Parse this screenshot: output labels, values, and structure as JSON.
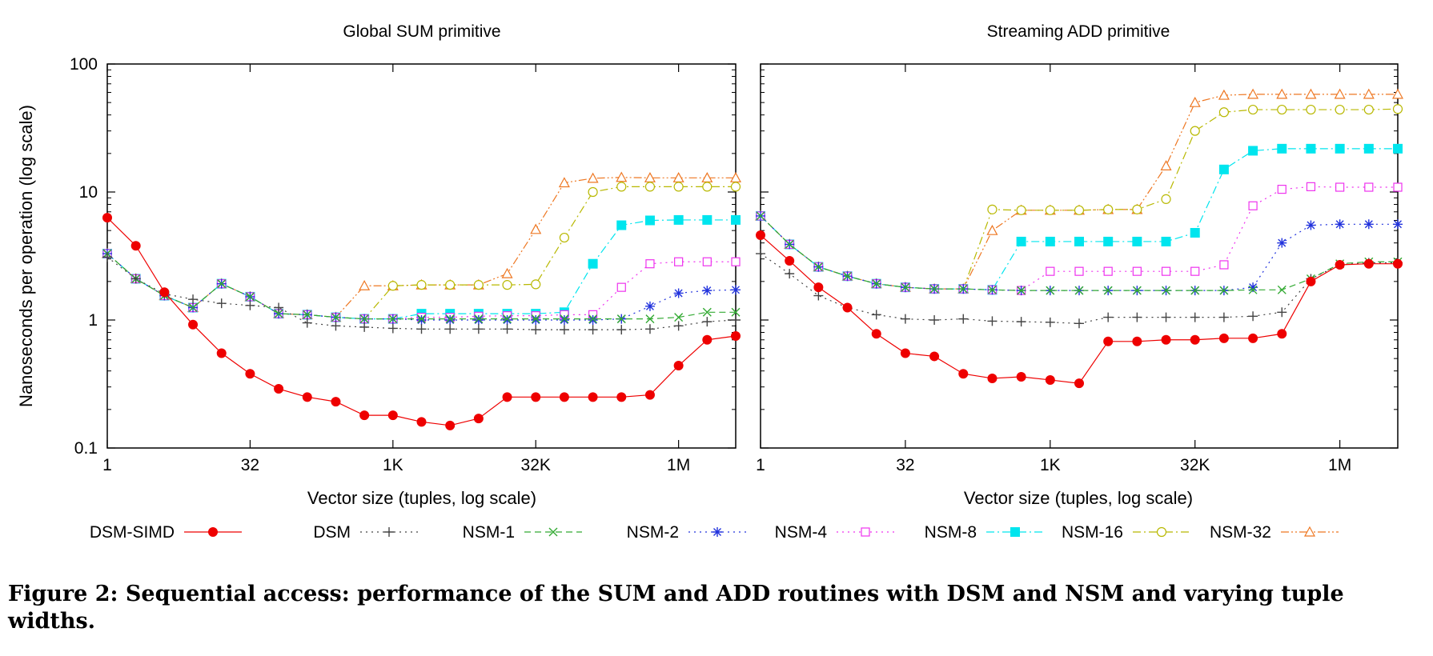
{
  "figure": {
    "caption": "Figure 2: Sequential access: performance of the SUM and ADD routines with DSM and NSM and varying tuple widths."
  },
  "ylabel": "Nanoseconds per operation (log scale)",
  "legend": [
    {
      "name": "DSM-SIMD",
      "color": "#ee0000",
      "marker": "filled-circle",
      "dash": "solid"
    },
    {
      "name": "DSM",
      "color": "#444444",
      "marker": "plus",
      "dash": "dot"
    },
    {
      "name": "NSM-1",
      "color": "#33aa33",
      "marker": "cross",
      "dash": "dash"
    },
    {
      "name": "NSM-2",
      "color": "#2233dd",
      "marker": "star",
      "dash": "dot"
    },
    {
      "name": "NSM-4",
      "color": "#ee33ee",
      "marker": "open-square",
      "dash": "dot"
    },
    {
      "name": "NSM-8",
      "color": "#00e5ee",
      "marker": "filled-square",
      "dash": "dashdot"
    },
    {
      "name": "NSM-16",
      "color": "#b8b800",
      "marker": "open-circle",
      "dash": "dashdot"
    },
    {
      "name": "NSM-32",
      "color": "#ee7722",
      "marker": "open-triangle",
      "dash": "dashdotdot"
    }
  ],
  "chart_data": [
    {
      "type": "line",
      "title": "Global SUM primitive",
      "xlabel": "Vector size (tuples, log scale)",
      "ylabel": "Nanoseconds per operation (log scale)",
      "x_scale": "log2",
      "y_scale": "log10",
      "x_tick_labels": [
        "1",
        "32",
        "1K",
        "32K",
        "1M"
      ],
      "y_tick_labels": [
        "0.1",
        "1",
        "10",
        "100"
      ],
      "ylim": [
        0.1,
        100
      ],
      "grid": false,
      "x": [
        1,
        2,
        4,
        8,
        16,
        32,
        64,
        128,
        256,
        512,
        1024,
        2048,
        4096,
        8192,
        16384,
        32768,
        65536,
        131072,
        262144,
        524288,
        1048576,
        2097152,
        4194304
      ],
      "series": [
        {
          "name": "DSM-SIMD",
          "values": [
            6.3,
            3.8,
            1.65,
            0.92,
            0.55,
            0.38,
            0.29,
            0.25,
            0.23,
            0.18,
            0.18,
            0.16,
            0.15,
            0.17,
            0.25,
            0.25,
            0.25,
            0.25,
            0.25,
            0.26,
            0.44,
            0.7,
            0.75
          ]
        },
        {
          "name": "DSM",
          "values": [
            3.1,
            2.1,
            1.6,
            1.45,
            1.35,
            1.3,
            1.25,
            0.95,
            0.9,
            0.88,
            0.86,
            0.85,
            0.85,
            0.85,
            0.85,
            0.84,
            0.84,
            0.84,
            0.84,
            0.85,
            0.9,
            0.97,
            1.0
          ]
        },
        {
          "name": "NSM-1",
          "values": [
            3.3,
            2.1,
            1.55,
            1.25,
            1.92,
            1.52,
            1.12,
            1.1,
            1.05,
            1.02,
            1.02,
            1.02,
            1.02,
            1.02,
            1.02,
            1.02,
            1.02,
            1.02,
            1.02,
            1.02,
            1.05,
            1.15,
            1.15
          ]
        },
        {
          "name": "NSM-2",
          "values": [
            3.3,
            2.1,
            1.55,
            1.25,
            1.92,
            1.52,
            1.12,
            1.1,
            1.05,
            1.02,
            1.02,
            1.0,
            1.0,
            1.0,
            1.0,
            1.0,
            1.0,
            1.0,
            1.02,
            1.28,
            1.62,
            1.7,
            1.72
          ]
        },
        {
          "name": "NSM-4",
          "values": [
            3.3,
            2.1,
            1.55,
            1.25,
            1.92,
            1.52,
            1.12,
            1.1,
            1.05,
            1.02,
            1.02,
            1.05,
            1.05,
            1.07,
            1.08,
            1.08,
            1.1,
            1.1,
            1.8,
            2.75,
            2.85,
            2.85,
            2.85
          ]
        },
        {
          "name": "NSM-8",
          "values": [
            3.3,
            2.1,
            1.55,
            1.25,
            1.92,
            1.52,
            1.12,
            1.1,
            1.05,
            1.02,
            1.02,
            1.12,
            1.12,
            1.12,
            1.12,
            1.12,
            1.15,
            2.75,
            5.5,
            6.0,
            6.05,
            6.05,
            6.05
          ]
        },
        {
          "name": "NSM-16",
          "values": [
            3.3,
            2.1,
            1.55,
            1.25,
            1.92,
            1.52,
            1.12,
            1.1,
            1.05,
            1.02,
            1.85,
            1.88,
            1.88,
            1.88,
            1.88,
            1.9,
            4.4,
            10.0,
            11.0,
            11.0,
            11.0,
            11.0,
            11.0
          ]
        },
        {
          "name": "NSM-32",
          "values": [
            3.3,
            2.1,
            1.55,
            1.25,
            1.92,
            1.52,
            1.12,
            1.1,
            1.05,
            1.85,
            1.85,
            1.88,
            1.88,
            1.88,
            2.3,
            5.1,
            11.8,
            12.8,
            13.0,
            12.9,
            12.9,
            12.9,
            12.9
          ]
        }
      ]
    },
    {
      "type": "line",
      "title": "Streaming ADD primitive",
      "xlabel": "Vector size (tuples, log scale)",
      "ylabel": "",
      "x_scale": "log2",
      "y_scale": "log10",
      "x_tick_labels": [
        "1",
        "32",
        "1K",
        "32K",
        "1M"
      ],
      "ylim": [
        0.1,
        100
      ],
      "grid": false,
      "x": [
        1,
        2,
        4,
        8,
        16,
        32,
        64,
        128,
        256,
        512,
        1024,
        2048,
        4096,
        8192,
        16384,
        32768,
        65536,
        131072,
        262144,
        524288,
        1048576,
        2097152,
        4194304
      ],
      "series": [
        {
          "name": "DSM-SIMD",
          "values": [
            4.6,
            2.9,
            1.8,
            1.25,
            0.78,
            0.55,
            0.52,
            0.38,
            0.35,
            0.36,
            0.34,
            0.32,
            0.68,
            0.68,
            0.7,
            0.7,
            0.72,
            0.72,
            0.78,
            2.0,
            2.7,
            2.75,
            2.75
          ]
        },
        {
          "name": "DSM",
          "values": [
            3.3,
            2.3,
            1.55,
            1.25,
            1.1,
            1.02,
            1.0,
            1.02,
            0.98,
            0.97,
            0.96,
            0.94,
            1.05,
            1.05,
            1.05,
            1.05,
            1.05,
            1.07,
            1.15,
            2.1,
            2.7,
            2.8,
            2.8
          ]
        },
        {
          "name": "NSM-1",
          "values": [
            6.5,
            3.9,
            2.6,
            2.2,
            1.92,
            1.8,
            1.75,
            1.75,
            1.72,
            1.7,
            1.7,
            1.7,
            1.7,
            1.7,
            1.7,
            1.7,
            1.7,
            1.72,
            1.72,
            2.1,
            2.75,
            2.85,
            2.85
          ]
        },
        {
          "name": "NSM-2",
          "values": [
            6.5,
            3.9,
            2.6,
            2.2,
            1.92,
            1.8,
            1.75,
            1.75,
            1.72,
            1.7,
            1.7,
            1.7,
            1.7,
            1.7,
            1.7,
            1.7,
            1.7,
            1.8,
            4.0,
            5.5,
            5.6,
            5.6,
            5.6
          ]
        },
        {
          "name": "NSM-4",
          "values": [
            6.5,
            3.9,
            2.6,
            2.2,
            1.92,
            1.8,
            1.75,
            1.75,
            1.72,
            1.7,
            2.4,
            2.4,
            2.4,
            2.4,
            2.4,
            2.4,
            2.7,
            7.8,
            10.5,
            11.0,
            10.9,
            10.9,
            10.9
          ]
        },
        {
          "name": "NSM-8",
          "values": [
            6.5,
            3.9,
            2.6,
            2.2,
            1.92,
            1.8,
            1.75,
            1.75,
            1.72,
            4.1,
            4.1,
            4.1,
            4.1,
            4.1,
            4.1,
            4.8,
            15.0,
            21.0,
            21.8,
            21.8,
            21.8,
            21.8,
            21.8
          ]
        },
        {
          "name": "NSM-16",
          "values": [
            6.5,
            3.9,
            2.6,
            2.2,
            1.92,
            1.8,
            1.75,
            1.75,
            7.3,
            7.2,
            7.2,
            7.2,
            7.3,
            7.3,
            8.8,
            30.0,
            42.0,
            44.0,
            44.0,
            44.0,
            44.0,
            44.0,
            44.5
          ]
        },
        {
          "name": "NSM-32",
          "values": [
            6.5,
            3.9,
            2.6,
            2.2,
            1.92,
            1.8,
            1.75,
            1.75,
            5.0,
            7.2,
            7.2,
            7.2,
            7.3,
            7.3,
            16.0,
            50.0,
            57.0,
            58.0,
            58.0,
            58.0,
            58.0,
            58.0,
            58.0
          ]
        }
      ]
    }
  ]
}
